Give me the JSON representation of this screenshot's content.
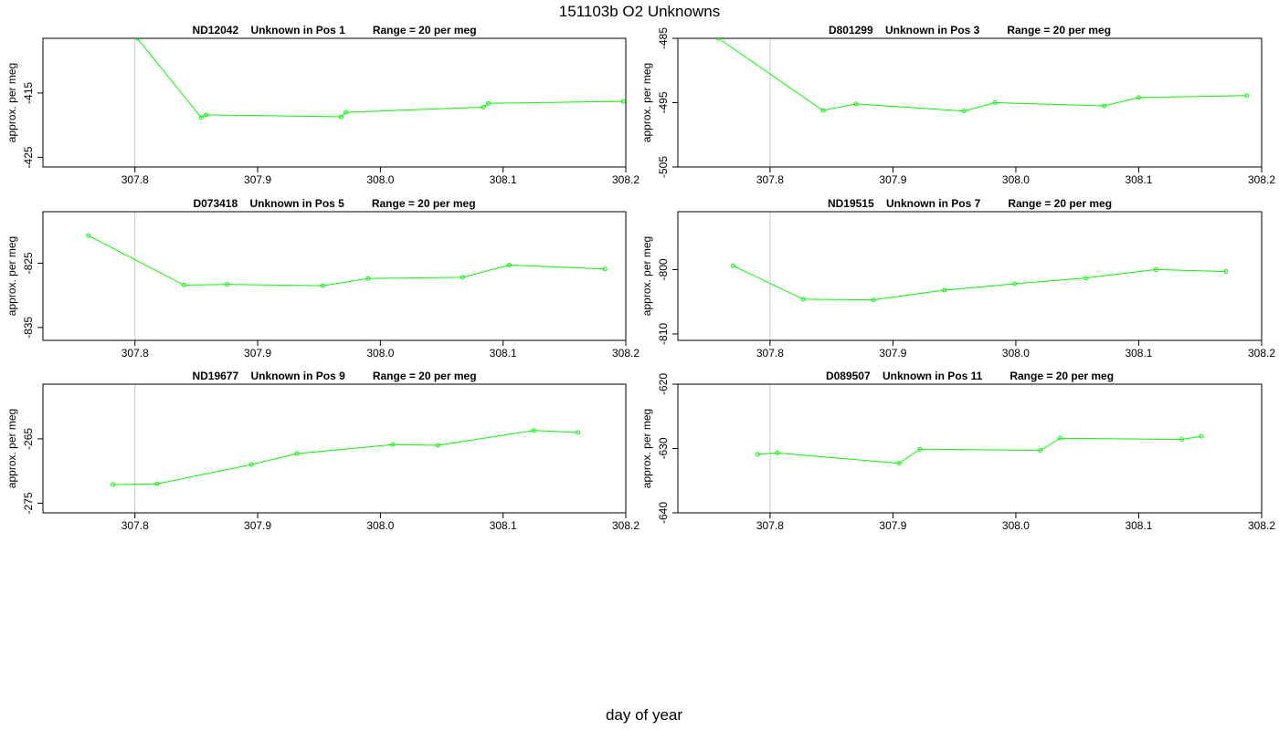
{
  "title": "151103b  O2 Unknowns",
  "xlabel": "day of year",
  "chart_data": [
    {
      "type": "line",
      "title": "ND12042    Unknown in Pos 1         Range = 20 per meg",
      "ylabel": "approx. per meg",
      "xlim": [
        307.725,
        308.2
      ],
      "ylim": [
        -426.5,
        -406.5
      ],
      "xticks": [
        "307.8",
        "307.9",
        "308.0",
        "308.1",
        "308.2"
      ],
      "yticks": [
        "-415",
        "-425"
      ],
      "x": [
        307.802,
        307.854,
        307.858,
        307.968,
        307.972,
        308.084,
        308.088,
        308.198
      ],
      "y": [
        -406.5,
        -418.8,
        -418.4,
        -418.7,
        -418.0,
        -417.2,
        -416.6,
        -416.3
      ],
      "color": "#00ff00"
    },
    {
      "type": "line",
      "title": "D801299    Unknown in Pos 3         Range = 20 per meg",
      "ylabel": "approx. per meg",
      "xlim": [
        307.725,
        308.2
      ],
      "ylim": [
        -505,
        -485
      ],
      "xticks": [
        "307.8",
        "307.9",
        "308.0",
        "308.1",
        "308.2"
      ],
      "yticks": [
        "-485",
        "-495",
        "-505"
      ],
      "x": [
        307.758,
        307.843,
        307.87,
        307.958,
        307.983,
        308.072,
        308.1,
        308.188
      ],
      "y": [
        -485.0,
        -496.2,
        -495.2,
        -496.3,
        -495.0,
        -495.5,
        -494.2,
        -493.9
      ],
      "color": "#00ff00"
    },
    {
      "type": "line",
      "title": "D073418    Unknown in Pos 5         Range = 20 per meg",
      "ylabel": "approx. per meg",
      "xlim": [
        307.725,
        308.2
      ],
      "ylim": [
        -837,
        -817
      ],
      "xticks": [
        "307.8",
        "307.9",
        "308.0",
        "308.1",
        "308.2"
      ],
      "yticks": [
        "-825",
        "-835"
      ],
      "x": [
        307.762,
        307.84,
        307.875,
        307.953,
        307.99,
        308.067,
        308.105,
        308.183
      ],
      "y": [
        -820.7,
        -828.4,
        -828.3,
        -828.5,
        -827.4,
        -827.2,
        -825.3,
        -825.9
      ],
      "color": "#00ff00"
    },
    {
      "type": "line",
      "title": "ND19515    Unknown in Pos 7         Range = 20 per meg",
      "ylabel": "approx. per meg",
      "xlim": [
        307.725,
        308.2
      ],
      "ylim": [
        -811,
        -791
      ],
      "xticks": [
        "307.8",
        "307.9",
        "308.0",
        "308.1",
        "308.2"
      ],
      "yticks": [
        "-800",
        "-810"
      ],
      "x": [
        307.77,
        307.827,
        307.884,
        307.942,
        307.999,
        308.057,
        308.114,
        308.171
      ],
      "y": [
        -799.4,
        -804.6,
        -804.7,
        -803.2,
        -802.2,
        -801.3,
        -800.0,
        -800.3
      ],
      "color": "#00ff00"
    },
    {
      "type": "line",
      "title": "ND19677    Unknown in Pos 9         Range = 20 per meg",
      "ylabel": "approx. per meg",
      "xlim": [
        307.725,
        308.2
      ],
      "ylim": [
        -276.5,
        -256.5
      ],
      "xticks": [
        "307.8",
        "307.9",
        "308.0",
        "308.1",
        "308.2"
      ],
      "yticks": [
        "-265",
        "-275"
      ],
      "x": [
        307.782,
        307.818,
        307.895,
        307.932,
        308.01,
        308.047,
        308.125,
        308.161
      ],
      "y": [
        -272.1,
        -272.0,
        -269.0,
        -267.3,
        -265.9,
        -266.0,
        -263.7,
        -264.0
      ],
      "color": "#00ff00"
    },
    {
      "type": "line",
      "title": "D089507    Unknown in Pos 11         Range = 20 per meg",
      "ylabel": "approx. per meg",
      "xlim": [
        307.725,
        308.2
      ],
      "ylim": [
        -640,
        -620
      ],
      "xticks": [
        "307.8",
        "307.9",
        "308.0",
        "308.1",
        "308.2"
      ],
      "yticks": [
        "-620",
        "-630",
        "-640"
      ],
      "x": [
        307.79,
        307.806,
        307.905,
        307.922,
        308.02,
        308.036,
        308.135,
        308.151
      ],
      "y": [
        -630.9,
        -630.7,
        -632.3,
        -630.1,
        -630.3,
        -628.4,
        -628.6,
        -628.1
      ],
      "color": "#00ff00"
    }
  ]
}
